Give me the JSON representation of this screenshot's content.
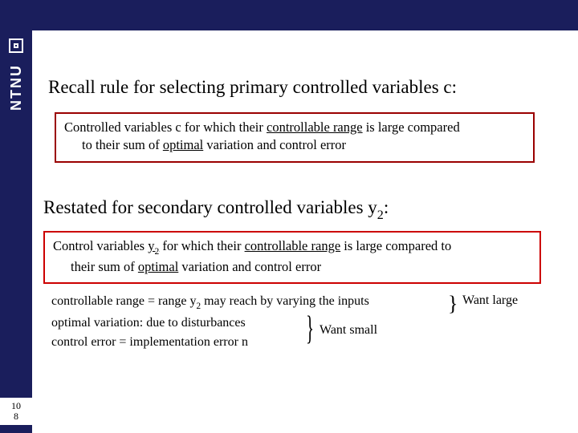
{
  "colors": {
    "bar_bg": "#1a1e5c",
    "box1_border": "#9a0000",
    "box2_border": "#cc0000",
    "text": "#000000",
    "logo": "#ffffff"
  },
  "logo_text": "NTNU",
  "title1": "Recall rule for selecting primary controlled variables c:",
  "box1_line1": "Controlled variables c for which their ",
  "box1_u1": "controllable range",
  "box1_line2": " is large compared",
  "box1_line3": "to their sum of ",
  "box1_u2": "optimal",
  "box1_line4": " variation and control error",
  "title2_a": "Restated for secondary controlled variables y",
  "title2_sub": "2",
  "title2_b": ":",
  "box2_a": "Control variables ",
  "box2_uy": "y",
  "box2_sub1": "2",
  "box2_b": " for which their ",
  "box2_u1": "controllable range",
  "box2_c": " is large compared to",
  "box2_d": "their sum of ",
  "box2_u2": "optimal",
  "box2_e": " variation and control error",
  "note1a": "controllable range = range y",
  "note1sub": "2",
  "note1b": " may reach by varying the inputs",
  "note2": "optimal variation: due to disturbances",
  "note3": "control error = implementation error n",
  "want_large": "Want large",
  "want_small": "Want small",
  "brace1": "}",
  "brace2": "}",
  "page_a": "10",
  "page_b": "8",
  "fonts": {
    "title_size_pt": 23,
    "body_size_pt": 16.5,
    "notes_size_pt": 16
  }
}
